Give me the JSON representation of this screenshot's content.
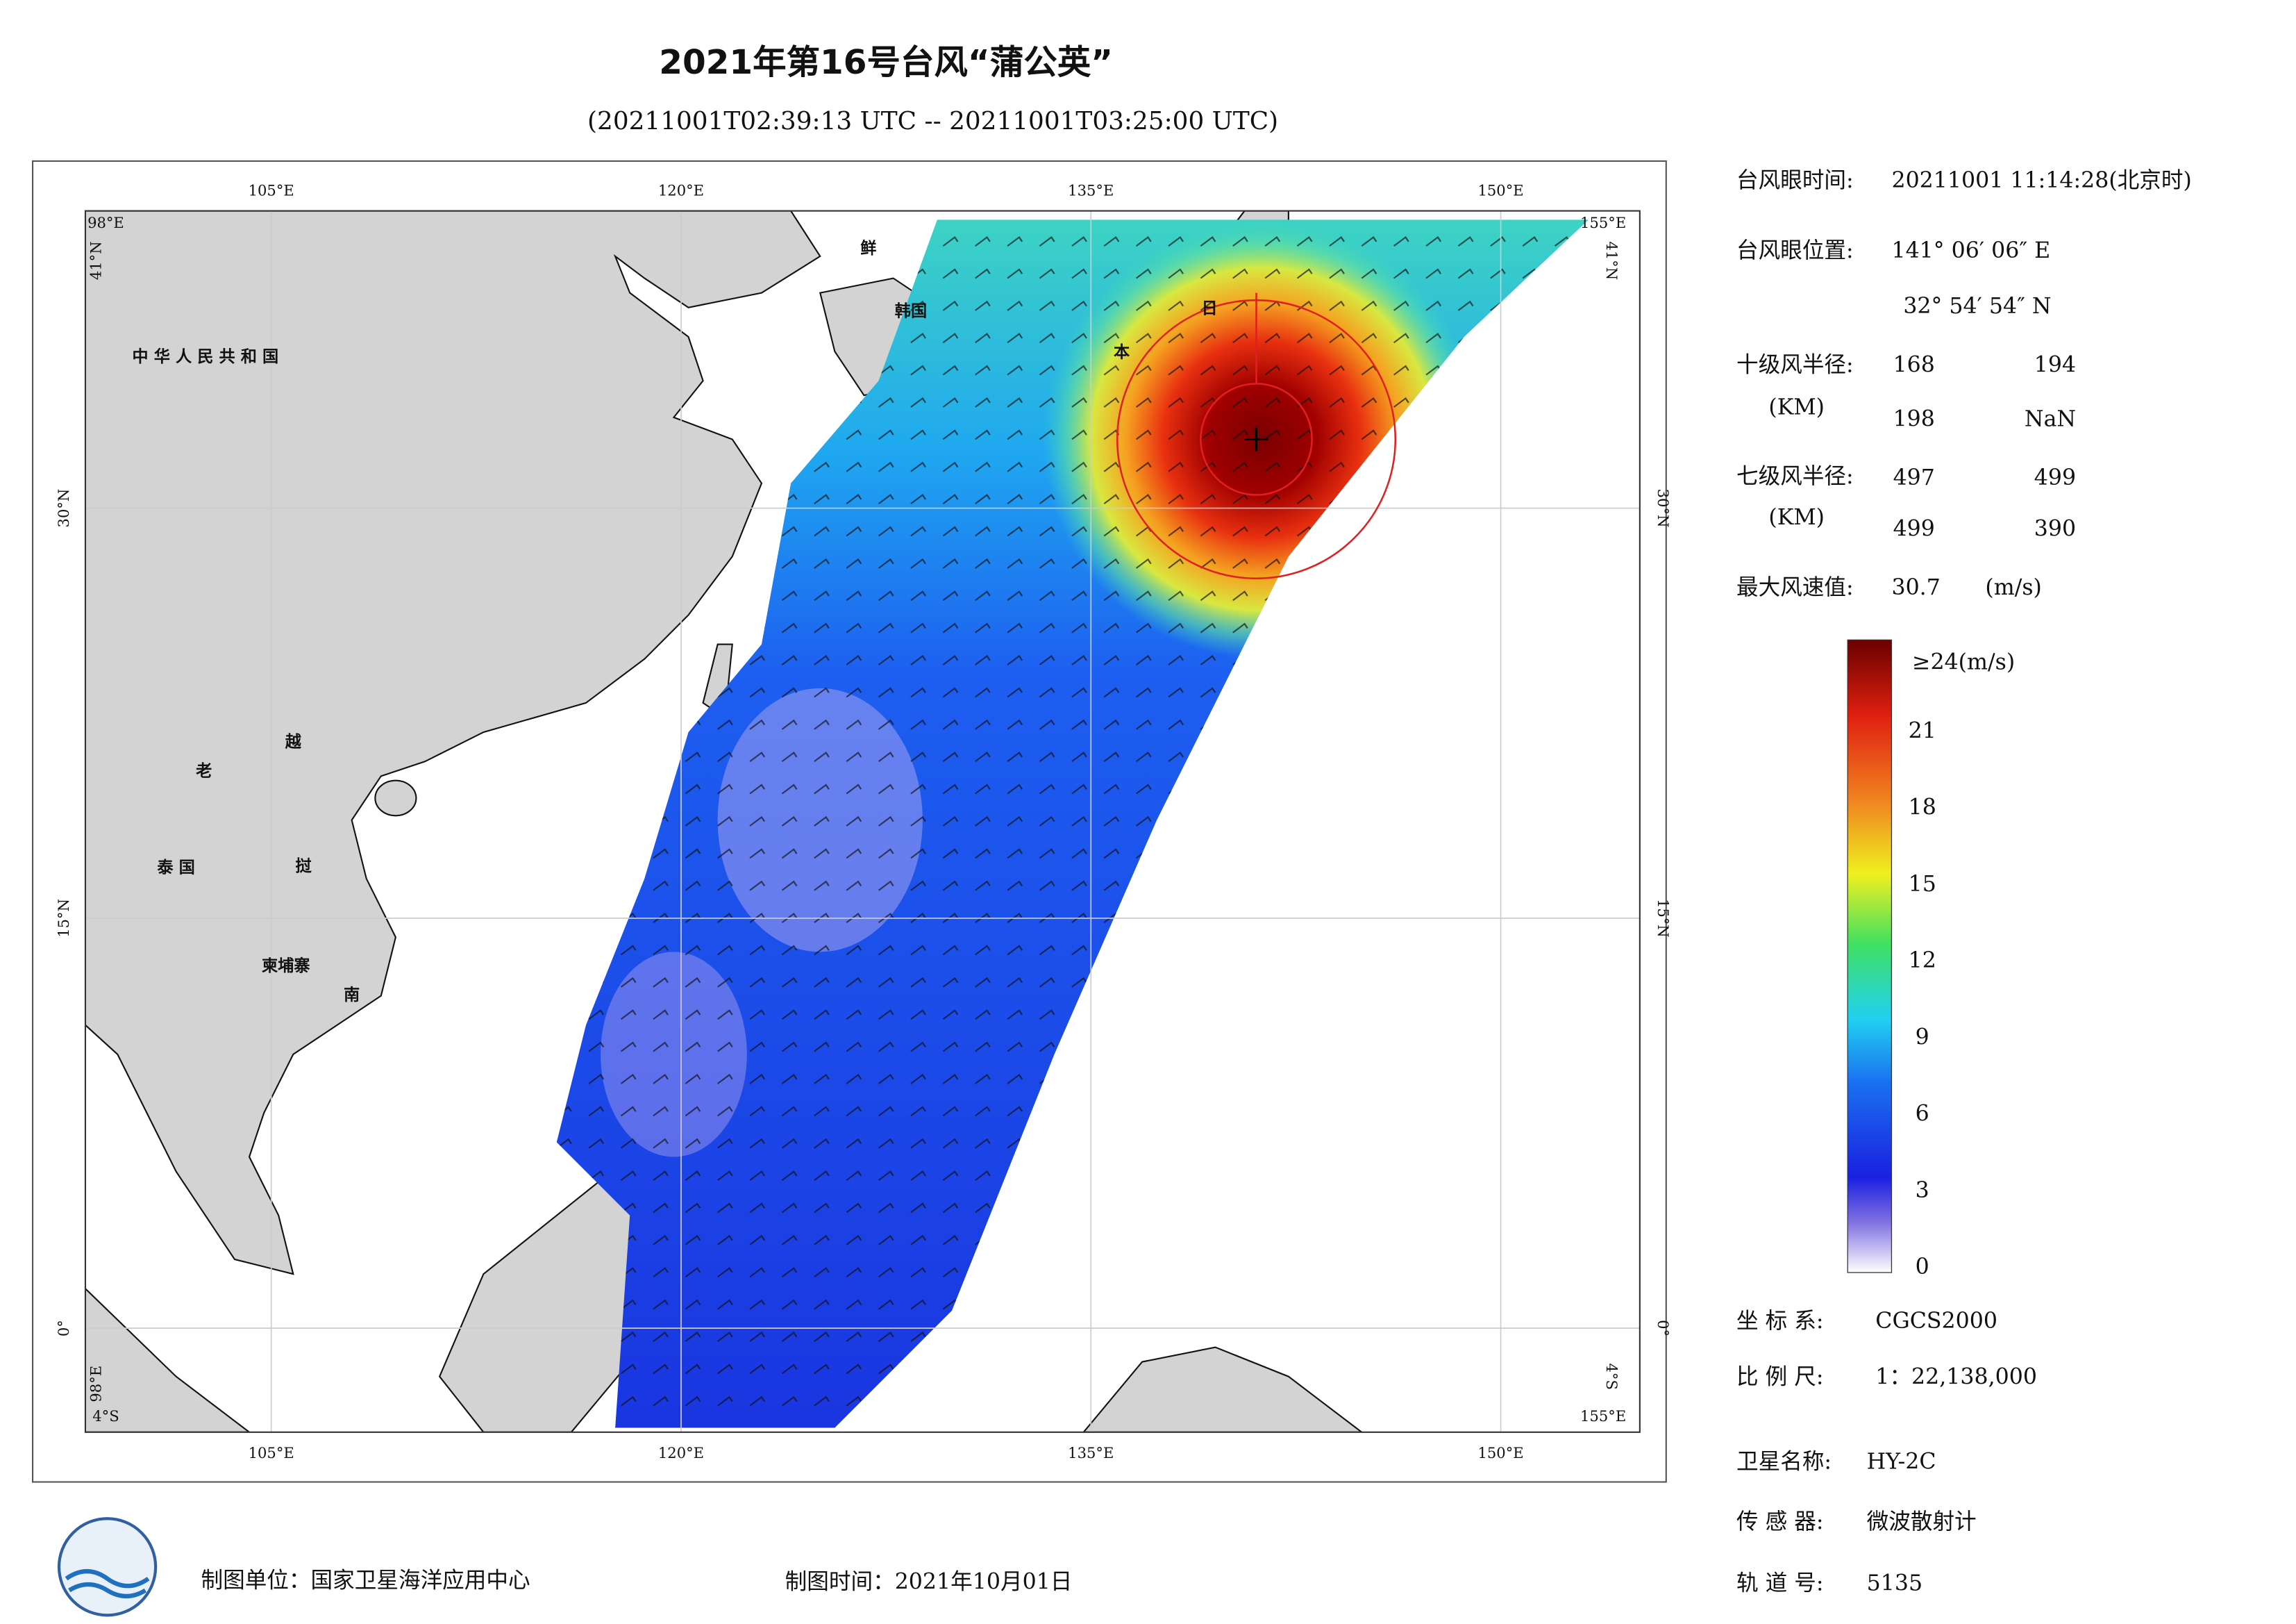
{
  "header": {
    "title": "2021年第16号台风“蒲公英”",
    "subtitle": "(20211001T02:39:13 UTC -- 20211001T03:25:00 UTC)"
  },
  "map": {
    "lon_labels": [
      "105°E",
      "120°E",
      "135°E",
      "150°E"
    ],
    "lat_labels": [
      "30°N",
      "15°N",
      "0°"
    ],
    "corner_labels": [
      "98°E",
      "41°N",
      "4°S",
      "155°E"
    ],
    "place_labels": [
      "中 华 人 民 共 和 国",
      "鲜",
      "韩国",
      "日",
      "本",
      "老",
      "越",
      "泰 国",
      "挝",
      "柬埔寨",
      "南"
    ]
  },
  "panel": {
    "eye_time_label": "台风眼时间:",
    "eye_time": "20211001 11:14:28(北京时)",
    "eye_pos_label": "台风眼位置:",
    "eye_lon": "141° 06′ 06″ E",
    "eye_lat": "32° 54′ 54″ N",
    "r10_label": "十级风半径:",
    "r10_unit": "(KM)",
    "r10": [
      168,
      194,
      198,
      "NaN"
    ],
    "r7_label": "七级风半径:",
    "r7_unit": "(KM)",
    "r7": [
      497,
      499,
      499,
      390
    ],
    "max_wind_label": "最大风速值:",
    "max_wind": 30.7,
    "max_wind_unit": "(m/s)",
    "colorbar": {
      "ticks": [
        0,
        3,
        6,
        9,
        12,
        15,
        18,
        21
      ],
      "top_label": "≥24(m/s)"
    },
    "coord_label": "坐 标 系:",
    "coord": "CGCS2000",
    "scale_label": "比 例 尺:",
    "scale": "1：22,138,000",
    "sat_label": "卫星名称:",
    "sat": "HY-2C",
    "sensor_label": "传 感 器:",
    "sensor": "微波散射计",
    "orbit_label": "轨 道 号:",
    "orbit": 5135
  },
  "footer": {
    "unit": "制图单位：国家卫星海洋应用中心",
    "time": "制图时间：2021年10月01日"
  }
}
